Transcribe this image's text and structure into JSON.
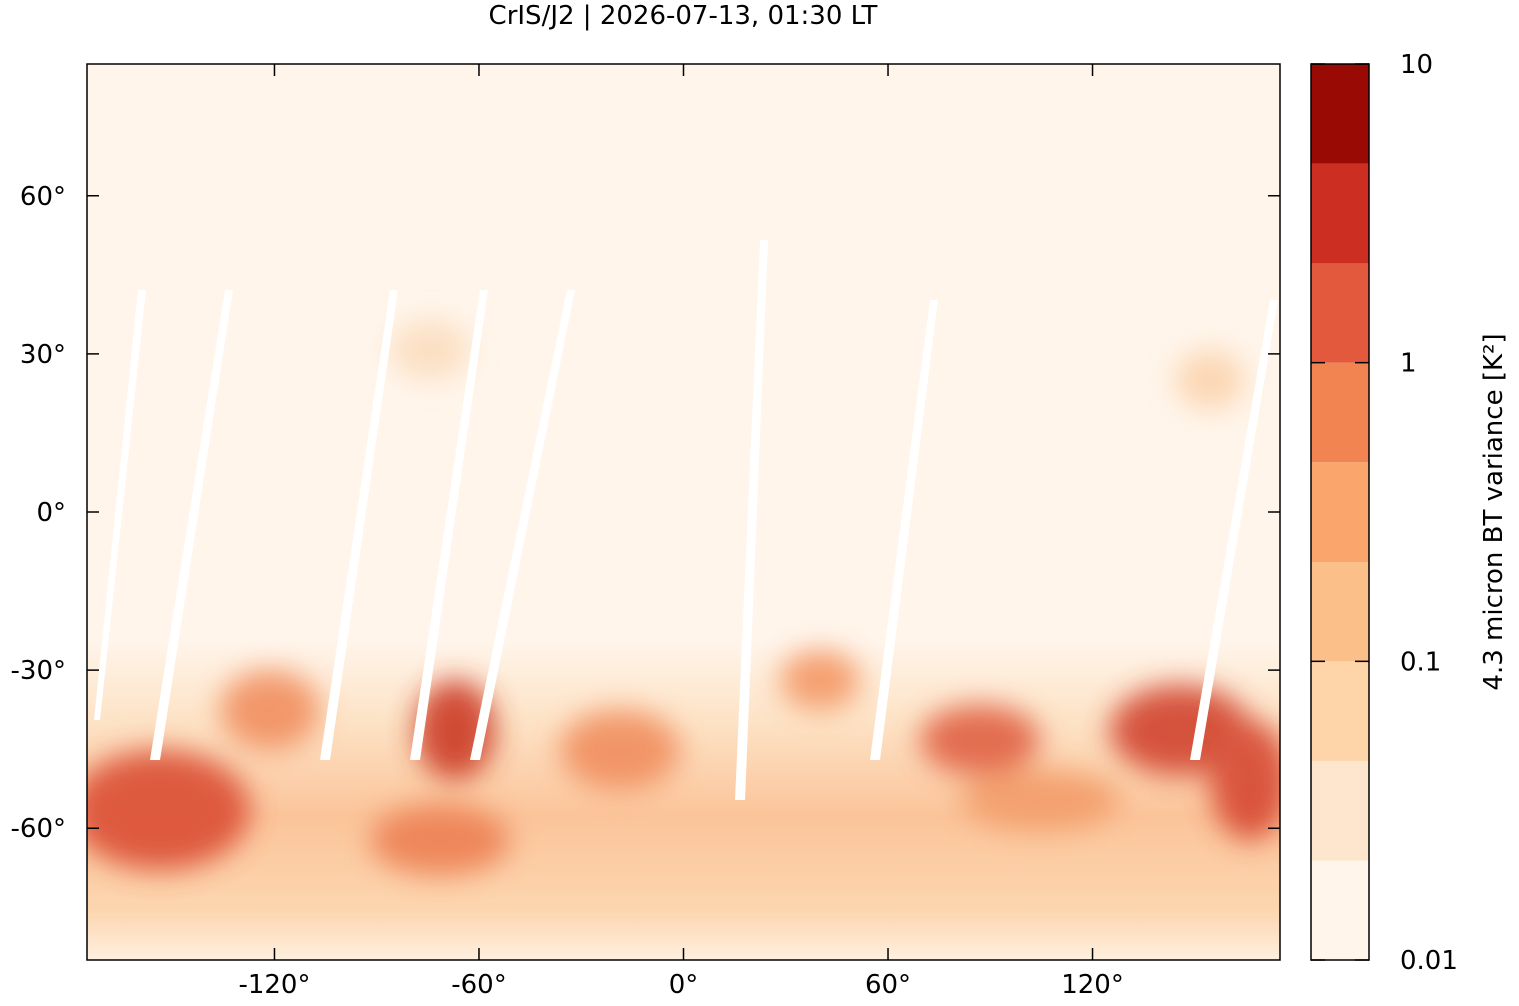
{
  "chart_data": {
    "type": "map",
    "title": "CrIS/J2 | 2026-07-13, 01:30 LT",
    "xlim": [
      -175,
      175
    ],
    "ylim": [
      -85,
      85
    ],
    "xticks": [
      {
        "value": -120,
        "label": "-120°"
      },
      {
        "value": -60,
        "label": "-60°"
      },
      {
        "value": 0,
        "label": "0°"
      },
      {
        "value": 60,
        "label": "60°"
      },
      {
        "value": 120,
        "label": "120°"
      }
    ],
    "yticks": [
      {
        "value": 60,
        "label": "60°"
      },
      {
        "value": 30,
        "label": "30°"
      },
      {
        "value": 0,
        "label": "0°"
      },
      {
        "value": -30,
        "label": "-30°"
      },
      {
        "value": -60,
        "label": "-60°"
      }
    ],
    "colorbar": {
      "label": "4.3 micron BT variance [K²]",
      "log": true,
      "lim": [
        0.01,
        10
      ],
      "ticks": [
        0.01,
        0.1,
        1,
        10
      ],
      "levels": [
        0.01,
        0.0215,
        0.0464,
        0.1,
        0.215,
        0.464,
        1,
        2.15,
        4.64,
        10
      ],
      "colors": [
        "#fff5eb",
        "#fee6ce",
        "#fdd5a8",
        "#fbc08a",
        "#f9a56b",
        "#f28452",
        "#e3593d",
        "#cc2e22",
        "#990a04"
      ]
    }
  }
}
